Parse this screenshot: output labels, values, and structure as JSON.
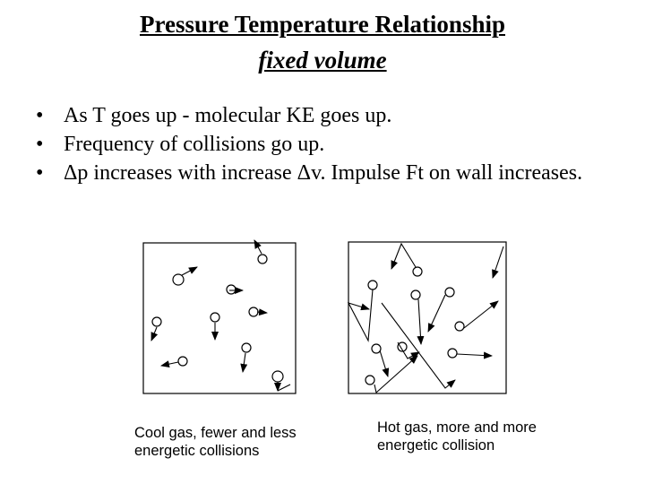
{
  "title": "Pressure Temperature Relationship",
  "subtitle": "fixed volume",
  "bullets": [
    "As T goes up  - molecular KE goes up.",
    "Frequency of collisions go up.",
    "Δp increases with increase Δv. Impulse Ft on wall increases."
  ],
  "captions": {
    "cool": "Cool gas, fewer and less\nenergetic collisions",
    "hot": "Hot gas, more and more\nenergetic collision"
  },
  "colors": {
    "ink": "#000000",
    "background": "#ffffff"
  }
}
